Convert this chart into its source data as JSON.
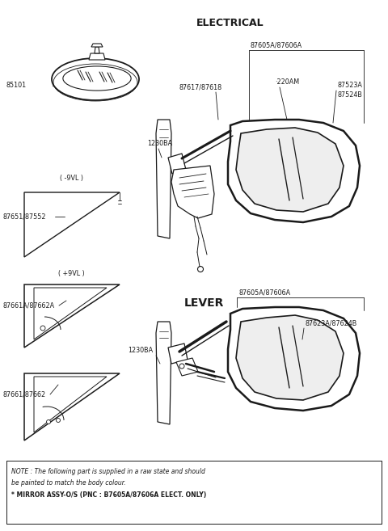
{
  "bg_color": "#ffffff",
  "fig_width": 4.8,
  "fig_height": 6.57,
  "dpi": 100,
  "note_line1": "NOTE : The following part is supplied in a raw state and should",
  "note_line2": "be painted to match the body colour.",
  "note_line3": "* MIRROR ASSY-O/S (PNC : B7605A/87606A ELECT. ONLY)",
  "label_electrical": "ELECTRICAL",
  "label_lever": "LEVER",
  "label_85101": "85101",
  "label_1230BA_1": "1230BA",
  "label_1230BA_2": "1230BA",
  "label_87605A_87606A_1": "87605A/87606A",
  "label_87605A_87606A_2": "87605A/87606A",
  "label_87617_87618": "87617/87618",
  "label_220AM": "·220AM",
  "label_87523A": "87523A",
  "label_87524B": "87524B",
  "label_87651_87552": "87651/87552",
  "label_neg9VL": "( -9VL )",
  "label_pos9VL": "( +9VL )",
  "label_87661A_87662A": "87661A/87662A",
  "label_87661_87662": "87661/87662",
  "label_87623A_87624B": "87623A/87624B"
}
